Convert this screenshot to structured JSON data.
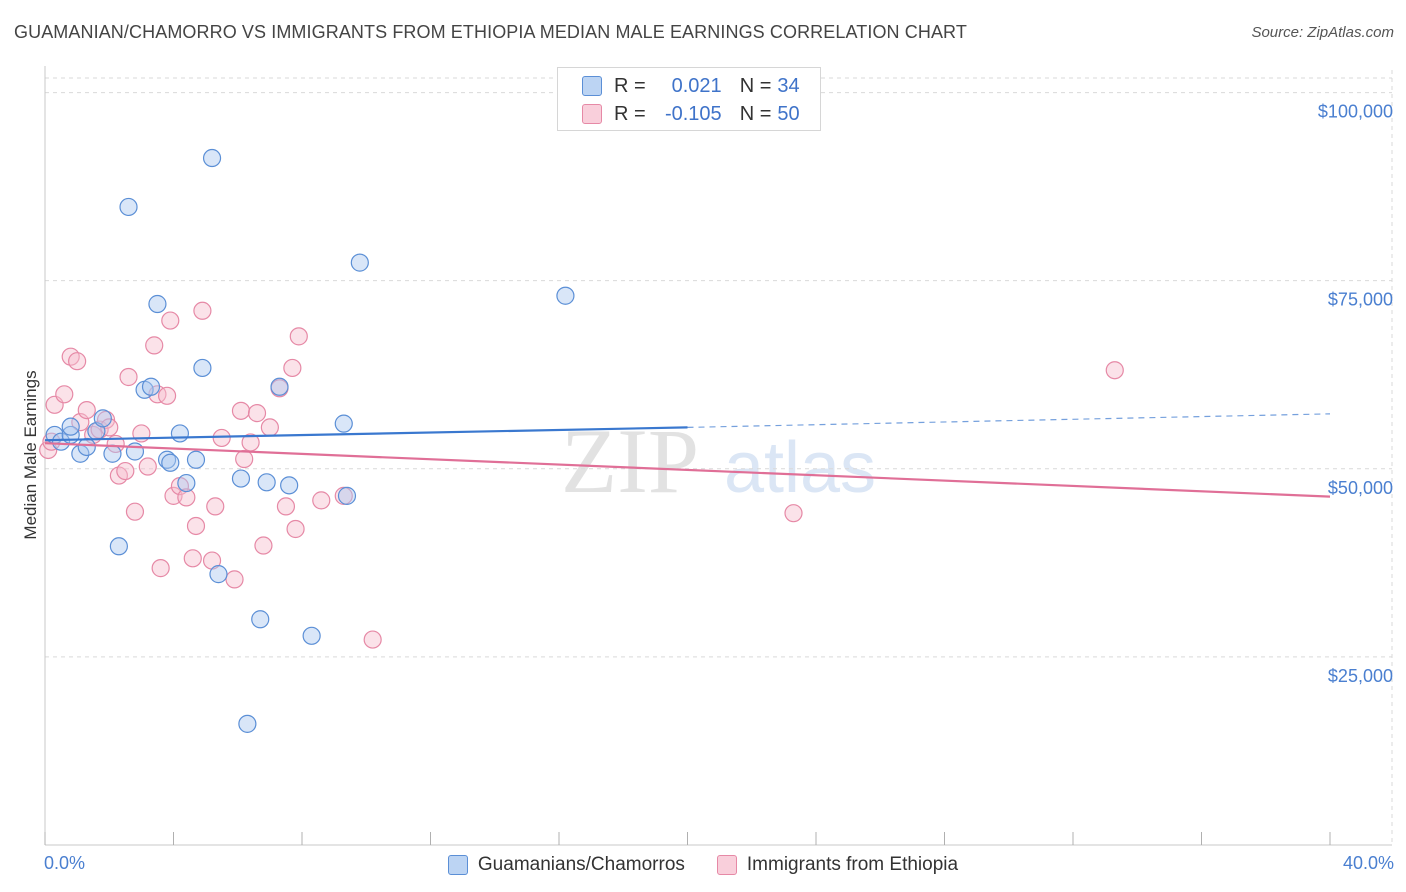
{
  "header": {
    "title": "GUAMANIAN/CHAMORRO VS IMMIGRANTS FROM ETHIOPIA MEDIAN MALE EARNINGS CORRELATION CHART",
    "source": "Source: ZipAtlas.com"
  },
  "legend_top": {
    "rows": [
      {
        "r_label": "R =",
        "r_value": "0.021",
        "n_label": "N =",
        "n_value": "34"
      },
      {
        "r_label": "R =",
        "r_value": "-0.105",
        "n_label": "N =",
        "n_value": "50"
      }
    ]
  },
  "legend_bottom": {
    "series_a": "Guamanians/Chamorros",
    "series_b": "Immigrants from Ethiopia"
  },
  "watermark": {
    "zip": "ZIP",
    "atlas": "atlas"
  },
  "colors": {
    "blue_fill": "#aac8f0",
    "blue_stroke": "#5b8fd6",
    "blue_line": "#3a78cf",
    "pink_fill": "#f7bfcf",
    "pink_stroke": "#e689a6",
    "pink_line": "#e06f97",
    "tick_text": "#4a7fd0",
    "grid": "#d9d9d9"
  },
  "chart_data": {
    "type": "scatter",
    "title": "GUAMANIAN/CHAMORRO VS IMMIGRANTS FROM ETHIOPIA MEDIAN MALE EARNINGS CORRELATION CHART",
    "xlabel": "",
    "ylabel": "Median Male Earnings",
    "xlim": [
      0,
      40
    ],
    "ylim": [
      0,
      103000
    ],
    "x_tick_labels": [
      "0.0%",
      "40.0%"
    ],
    "y_ticks": [
      25000,
      50000,
      75000,
      100000
    ],
    "y_tick_labels": [
      "$25,000",
      "$50,000",
      "$75,000",
      "$100,000"
    ],
    "series": [
      {
        "name": "Guamanians/Chamorros",
        "color": "#aac8f0",
        "trend": {
          "x1": 0,
          "y1": 53800,
          "x2": 20,
          "y2": 55500,
          "dash_to_x": 40,
          "dash_to_y": 57300
        },
        "points": [
          {
            "x": 0.3,
            "y": 54500
          },
          {
            "x": 0.5,
            "y": 53600
          },
          {
            "x": 0.8,
            "y": 54500
          },
          {
            "x": 0.8,
            "y": 55600
          },
          {
            "x": 1.1,
            "y": 52000
          },
          {
            "x": 1.3,
            "y": 52900
          },
          {
            "x": 1.6,
            "y": 55000
          },
          {
            "x": 1.8,
            "y": 56700
          },
          {
            "x": 2.1,
            "y": 52000
          },
          {
            "x": 2.3,
            "y": 39700
          },
          {
            "x": 2.6,
            "y": 84800
          },
          {
            "x": 2.8,
            "y": 52300
          },
          {
            "x": 3.1,
            "y": 60500
          },
          {
            "x": 3.3,
            "y": 60900
          },
          {
            "x": 3.5,
            "y": 71900
          },
          {
            "x": 3.8,
            "y": 51200
          },
          {
            "x": 3.9,
            "y": 50800
          },
          {
            "x": 4.2,
            "y": 54700
          },
          {
            "x": 4.4,
            "y": 48100
          },
          {
            "x": 4.7,
            "y": 51200
          },
          {
            "x": 4.9,
            "y": 63400
          },
          {
            "x": 5.2,
            "y": 91300
          },
          {
            "x": 5.4,
            "y": 36000
          },
          {
            "x": 6.1,
            "y": 48700
          },
          {
            "x": 6.3,
            "y": 16100
          },
          {
            "x": 6.7,
            "y": 30000
          },
          {
            "x": 6.9,
            "y": 48200
          },
          {
            "x": 7.3,
            "y": 60900
          },
          {
            "x": 7.6,
            "y": 47800
          },
          {
            "x": 8.3,
            "y": 27800
          },
          {
            "x": 9.3,
            "y": 56000
          },
          {
            "x": 9.4,
            "y": 46400
          },
          {
            "x": 9.8,
            "y": 77400
          },
          {
            "x": 16.2,
            "y": 73000
          }
        ]
      },
      {
        "name": "Immigrants from Ethiopia",
        "color": "#f7bfcf",
        "trend": {
          "x1": 0,
          "y1": 53400,
          "x2": 40,
          "y2": 46300
        },
        "points": [
          {
            "x": 0.1,
            "y": 52500
          },
          {
            "x": 0.2,
            "y": 53600
          },
          {
            "x": 0.3,
            "y": 58500
          },
          {
            "x": 0.6,
            "y": 59900
          },
          {
            "x": 0.8,
            "y": 64900
          },
          {
            "x": 1.0,
            "y": 64300
          },
          {
            "x": 1.1,
            "y": 56200
          },
          {
            "x": 1.3,
            "y": 57800
          },
          {
            "x": 1.5,
            "y": 54500
          },
          {
            "x": 1.7,
            "y": 55200
          },
          {
            "x": 1.9,
            "y": 56500
          },
          {
            "x": 2.0,
            "y": 55500
          },
          {
            "x": 2.2,
            "y": 53300
          },
          {
            "x": 2.3,
            "y": 49100
          },
          {
            "x": 2.5,
            "y": 49700
          },
          {
            "x": 2.6,
            "y": 62200
          },
          {
            "x": 2.8,
            "y": 44300
          },
          {
            "x": 3.0,
            "y": 54700
          },
          {
            "x": 3.2,
            "y": 50300
          },
          {
            "x": 3.4,
            "y": 66400
          },
          {
            "x": 3.5,
            "y": 59900
          },
          {
            "x": 3.6,
            "y": 36800
          },
          {
            "x": 3.8,
            "y": 59700
          },
          {
            "x": 3.9,
            "y": 69700
          },
          {
            "x": 4.0,
            "y": 46400
          },
          {
            "x": 4.2,
            "y": 47700
          },
          {
            "x": 4.4,
            "y": 46200
          },
          {
            "x": 4.6,
            "y": 38100
          },
          {
            "x": 4.7,
            "y": 42400
          },
          {
            "x": 4.9,
            "y": 71000
          },
          {
            "x": 5.2,
            "y": 37800
          },
          {
            "x": 5.3,
            "y": 45000
          },
          {
            "x": 5.5,
            "y": 54100
          },
          {
            "x": 5.9,
            "y": 35300
          },
          {
            "x": 6.1,
            "y": 57700
          },
          {
            "x": 6.2,
            "y": 51300
          },
          {
            "x": 6.4,
            "y": 53500
          },
          {
            "x": 6.6,
            "y": 57400
          },
          {
            "x": 6.8,
            "y": 39800
          },
          {
            "x": 7.0,
            "y": 55500
          },
          {
            "x": 7.3,
            "y": 60700
          },
          {
            "x": 7.5,
            "y": 45000
          },
          {
            "x": 7.7,
            "y": 63400
          },
          {
            "x": 7.8,
            "y": 42000
          },
          {
            "x": 7.9,
            "y": 67600
          },
          {
            "x": 8.6,
            "y": 45800
          },
          {
            "x": 9.3,
            "y": 46400
          },
          {
            "x": 10.2,
            "y": 27300
          },
          {
            "x": 23.3,
            "y": 44100
          },
          {
            "x": 33.3,
            "y": 63100
          }
        ]
      }
    ],
    "legend": {
      "position": "top-center"
    }
  }
}
